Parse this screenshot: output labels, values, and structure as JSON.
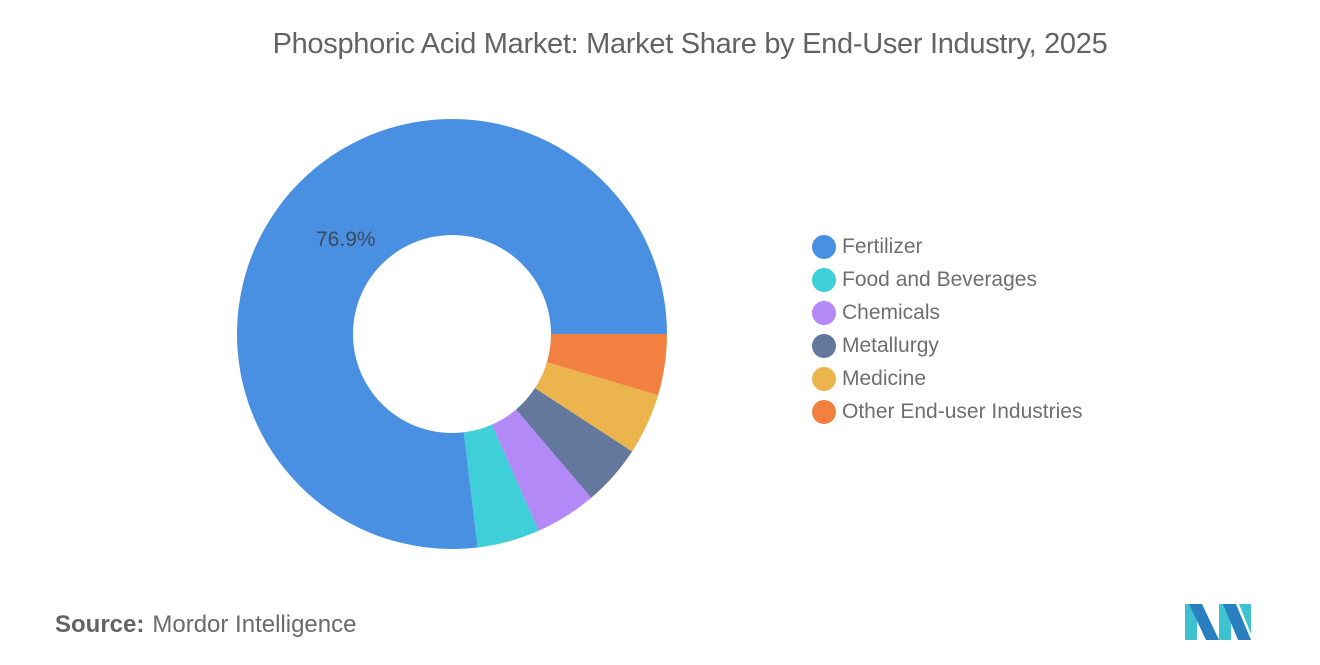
{
  "header": {
    "title": "Phosphoric Acid Market: Market Share by End-User Industry, 2025"
  },
  "chart_data": {
    "type": "pie",
    "variant": "donut",
    "title": "Phosphoric Acid Market: Market Share by End-User Industry, 2025",
    "categories": [
      "Fertilizer",
      "Food and Beverages",
      "Chemicals",
      "Metallurgy",
      "Medicine",
      "Other End-user Industries"
    ],
    "values": [
      76.9,
      4.7,
      4.6,
      4.6,
      4.6,
      4.6
    ],
    "colors": [
      "#4a90e2",
      "#3fcfd8",
      "#b388f7",
      "#64789e",
      "#ebb44c",
      "#f28040"
    ],
    "labels_shown": [
      {
        "category": "Fertilizer",
        "text": "76.9%"
      }
    ],
    "legend_position": "right"
  },
  "legend": {
    "items": [
      {
        "label": "Fertilizer",
        "color": "#4a90e2"
      },
      {
        "label": "Food and Beverages",
        "color": "#3fcfd8"
      },
      {
        "label": "Chemicals",
        "color": "#b388f7"
      },
      {
        "label": "Metallurgy",
        "color": "#64789e"
      },
      {
        "label": "Medicine",
        "color": "#ebb44c"
      },
      {
        "label": "Other End-user Industries",
        "color": "#f28040"
      }
    ]
  },
  "data_label": {
    "fertilizer": "76.9%"
  },
  "footer": {
    "source_label": "Source:",
    "source_value": "Mordor Intelligence"
  },
  "logo": {
    "name": "mordor-intelligence-logo"
  }
}
